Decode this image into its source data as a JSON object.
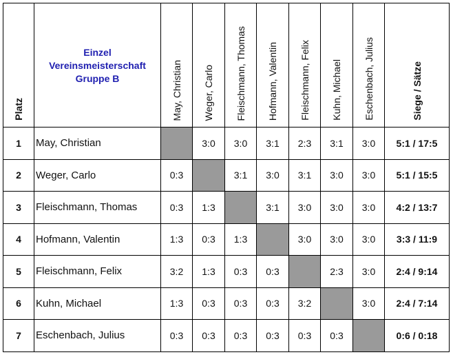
{
  "title": {
    "line1": "Einzel",
    "line2": "Vereinsmeisterschaft",
    "line3": "Gruppe B"
  },
  "headers": {
    "platz": "Platz",
    "siege": "Siege / Sätze"
  },
  "columns": [
    "May, Christian",
    "Weger, Carlo",
    "Fleischmann, Thomas",
    "Hofmann, Valentin",
    "Fleischmann, Felix",
    "Kuhn, Michael",
    "Eschenbach, Julius"
  ],
  "rows": [
    {
      "rank": "1",
      "name": "May, Christian",
      "scores": [
        "",
        "3:0",
        "3:0",
        "3:1",
        "2:3",
        "3:1",
        "3:0"
      ],
      "total": "5:1 / 17:5"
    },
    {
      "rank": "2",
      "name": "Weger, Carlo",
      "scores": [
        "0:3",
        "",
        "3:1",
        "3:0",
        "3:1",
        "3:0",
        "3:0"
      ],
      "total": "5:1 / 15:5"
    },
    {
      "rank": "3",
      "name": "Fleischmann, Thomas",
      "scores": [
        "0:3",
        "1:3",
        "",
        "3:1",
        "3:0",
        "3:0",
        "3:0"
      ],
      "total": "4:2 / 13:7"
    },
    {
      "rank": "4",
      "name": "Hofmann, Valentin",
      "scores": [
        "1:3",
        "0:3",
        "1:3",
        "",
        "3:0",
        "3:0",
        "3:0"
      ],
      "total": "3:3 / 11:9"
    },
    {
      "rank": "5",
      "name": "Fleischmann, Felix",
      "scores": [
        "3:2",
        "1:3",
        "0:3",
        "0:3",
        "",
        "2:3",
        "3:0"
      ],
      "total": "2:4 / 9:14"
    },
    {
      "rank": "6",
      "name": "Kuhn, Michael",
      "scores": [
        "1:3",
        "0:3",
        "0:3",
        "0:3",
        "3:2",
        "",
        "3:0"
      ],
      "total": "2:4 / 7:14"
    },
    {
      "rank": "7",
      "name": "Eschenbach, Julius",
      "scores": [
        "0:3",
        "0:3",
        "0:3",
        "0:3",
        "0:3",
        "0:3",
        ""
      ],
      "total": "0:6 / 0:18"
    }
  ],
  "colors": {
    "title": "#1f1fb0",
    "self_cell": "#9a9a9a"
  }
}
